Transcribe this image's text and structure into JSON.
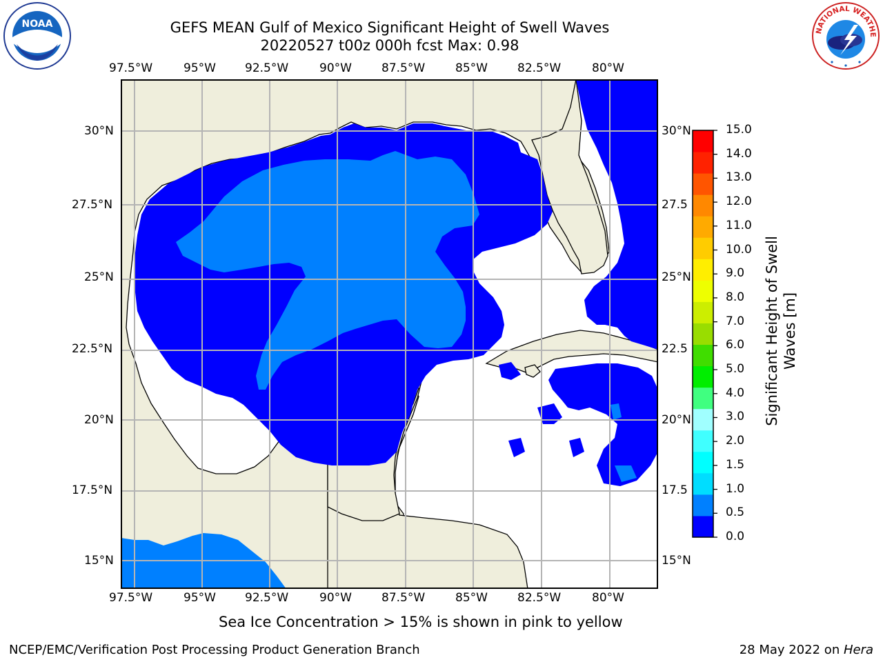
{
  "title": {
    "line1": "GEFS MEAN Gulf of Mexico Significant Height of Swell Waves",
    "line2": "20220527 t00z 000h fcst   Max: 0.98"
  },
  "axes": {
    "lon_labels": [
      "97.5°W",
      "95°W",
      "92.5°W",
      "90°W",
      "87.5°W",
      "85°W",
      "82.5°W",
      "80°W"
    ],
    "lat_labels": [
      "30°N",
      "27.5°N",
      "25°N",
      "22.5°N",
      "20°N",
      "17.5°N",
      "15°N"
    ],
    "lat_labels_right": [
      "30°N",
      "27.5",
      "25°N",
      "22.5",
      "20°N",
      "17.5",
      "15°N"
    ]
  },
  "colorbar": {
    "label": "Significant Height of Swell Waves [m]",
    "ticks": [
      "15.0",
      "14.0",
      "13.0",
      "12.0",
      "11.0",
      "10.0",
      "9.0",
      "8.0",
      "7.0",
      "6.0",
      "5.0",
      "4.0",
      "3.0",
      "2.0",
      "1.5",
      "1.0",
      "0.5",
      "0.0"
    ],
    "colors": [
      "#0000ff",
      "#0080ff",
      "#00ddff",
      "#00ffff",
      "#40ffff",
      "#a0ffff",
      "#40ff80",
      "#00ee00",
      "#40dd00",
      "#99dd00",
      "#ccee00",
      "#eeff00",
      "#ffee00",
      "#ffcc00",
      "#ffaa00",
      "#ff8800",
      "#ff5500",
      "#ff2200",
      "#ff0000"
    ]
  },
  "colors": {
    "land": "#efeedc",
    "swell_low": "#0000ff",
    "swell_mid": "#0080ff",
    "grid": "#b4b4b4"
  },
  "logos": {
    "noaa_text": "NOAA",
    "nws_text": "NATIONAL WEATHER SERVICE"
  },
  "note": "Sea Ice Concentration > 15% is shown in pink to yellow",
  "footer": {
    "left": "NCEP/EMC/Verification Post Processing Product Generation Branch",
    "right_prefix": "28 May 2022 on ",
    "right_host": "Hera"
  }
}
